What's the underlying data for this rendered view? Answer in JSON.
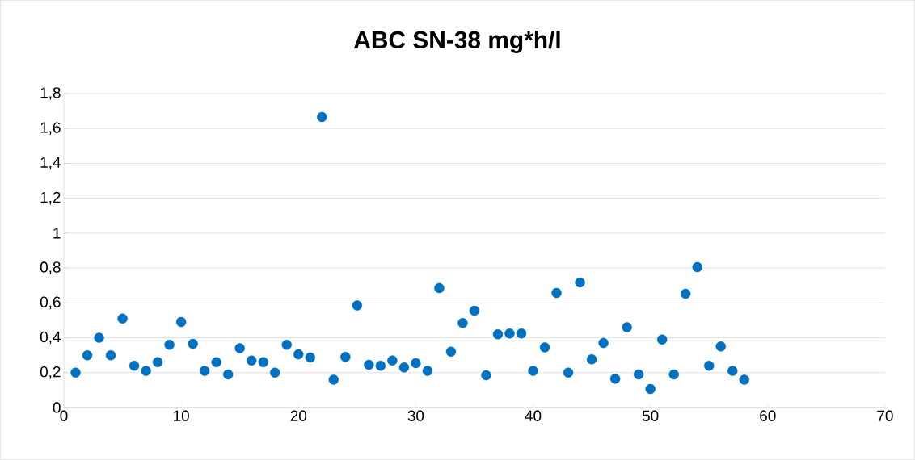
{
  "chart_data": {
    "type": "scatter",
    "title": "ABC SN-38 mg*h/l",
    "x": [
      1,
      2,
      3,
      4,
      5,
      6,
      7,
      8,
      9,
      10,
      11,
      12,
      13,
      14,
      15,
      16,
      17,
      18,
      19,
      20,
      21,
      22,
      23,
      24,
      25,
      26,
      27,
      28,
      29,
      30,
      31,
      32,
      33,
      34,
      35,
      36,
      37,
      38,
      39,
      40,
      41,
      42,
      43,
      44,
      45,
      46,
      47,
      48,
      49,
      50,
      51,
      52,
      53,
      54,
      55,
      56,
      57,
      58
    ],
    "values": [
      0.2,
      0.3,
      0.4,
      0.3,
      0.51,
      0.24,
      0.21,
      0.26,
      0.36,
      0.49,
      0.365,
      0.21,
      0.26,
      0.19,
      0.34,
      0.27,
      0.26,
      0.2,
      0.36,
      0.305,
      0.287,
      1.666,
      0.16,
      0.29,
      0.585,
      0.245,
      0.24,
      0.27,
      0.23,
      0.255,
      0.21,
      0.685,
      0.32,
      0.485,
      0.555,
      0.185,
      0.42,
      0.425,
      0.425,
      0.21,
      0.345,
      0.657,
      0.2,
      0.717,
      0.277,
      0.37,
      0.165,
      0.46,
      0.19,
      0.106,
      0.39,
      0.19,
      0.652,
      0.805,
      0.24,
      0.35,
      0.21,
      0.16
    ],
    "color": "#0070c0",
    "marker": "circle",
    "grid": "y",
    "xlim": [
      0,
      70
    ],
    "xticks": [
      0,
      10,
      20,
      30,
      40,
      50,
      60,
      70
    ],
    "ylim": [
      0,
      1.8
    ],
    "yticks": [
      0,
      {
        "value": 0.2,
        "label": "0,2"
      },
      {
        "value": 0.4,
        "label": "0,4"
      },
      {
        "value": 0.6,
        "label": "0,6"
      },
      {
        "value": 0.8,
        "label": "0,8"
      },
      1,
      {
        "value": 1.2,
        "label": "1,2"
      },
      {
        "value": 1.4,
        "label": "1,4"
      },
      {
        "value": 1.6,
        "label": "1,6"
      },
      {
        "value": 1.8,
        "label": "1,8"
      }
    ]
  }
}
